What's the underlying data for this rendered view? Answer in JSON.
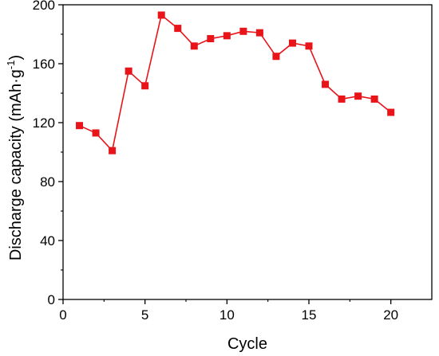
{
  "chart_data": {
    "type": "line",
    "xlabel": "Cycle",
    "ylabel_main": "Discharge capacity (mAh·g",
    "ylabel_sup": "-1",
    "ylabel_close": ")",
    "xlim": [
      0,
      22.5
    ],
    "ylim": [
      0,
      200
    ],
    "xticks": [
      0,
      5,
      10,
      15,
      20
    ],
    "yticks": [
      0,
      40,
      80,
      120,
      160,
      200
    ],
    "xtick_labels": [
      "0",
      "5",
      "10",
      "15",
      "20"
    ],
    "ytick_labels": [
      "0",
      "40",
      "80",
      "120",
      "160",
      "200"
    ],
    "grid": false,
    "series": [
      {
        "marker": "square",
        "color": "#e8141a",
        "x": [
          1,
          2,
          3,
          4,
          5,
          6,
          7,
          8,
          9,
          10,
          11,
          12,
          13,
          14,
          15,
          16,
          17,
          18,
          19,
          20
        ],
        "y": [
          118,
          113,
          101,
          155,
          145,
          193,
          184,
          172,
          177,
          179,
          182,
          181,
          165,
          174,
          172,
          146,
          136,
          138,
          136,
          127
        ]
      }
    ]
  }
}
